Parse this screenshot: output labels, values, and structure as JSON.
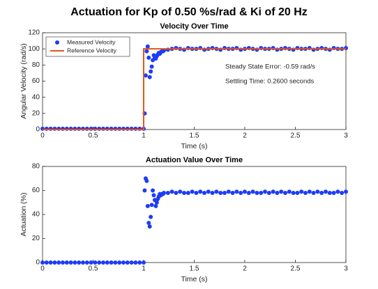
{
  "title": "Actuation for Kp of 0.50 %s/rad & Ki of 20 Hz",
  "chart_data": [
    {
      "type": "scatter",
      "title": "Velocity Over Time",
      "x_label": "Time (s)",
      "y_label": "Angular Velocity (rad/s)",
      "xlim": [
        0,
        3
      ],
      "xticks": [
        0,
        0.5,
        1,
        1.5,
        2,
        2.5,
        3
      ],
      "ylim": [
        0,
        120
      ],
      "yticks": [
        0,
        20,
        40,
        60,
        80,
        100,
        120
      ],
      "legend": "upper left",
      "annotations": [
        "Steady State Error: -0.59 rad/s",
        "Settling Time: 0.2600 seconds"
      ],
      "series": [
        {
          "name": "Measured Velocity",
          "mode": "markers",
          "color": "#1d3cf5",
          "x": [
            0,
            0.04,
            0.08,
            0.12,
            0.16,
            0.2,
            0.24,
            0.28,
            0.32,
            0.36,
            0.4,
            0.44,
            0.48,
            0.52,
            0.56,
            0.6,
            0.64,
            0.68,
            0.72,
            0.76,
            0.8,
            0.84,
            0.88,
            0.92,
            0.96,
            1,
            1.01,
            1.02,
            1.03,
            1.04,
            1.05,
            1.06,
            1.07,
            1.08,
            1.09,
            1.1,
            1.11,
            1.12,
            1.13,
            1.14,
            1.15,
            1.16,
            1.17,
            1.18,
            1.19,
            1.2,
            1.24,
            1.28,
            1.32,
            1.36,
            1.4,
            1.44,
            1.48,
            1.52,
            1.56,
            1.6,
            1.64,
            1.68,
            1.72,
            1.76,
            1.8,
            1.84,
            1.88,
            1.92,
            1.96,
            2,
            2.04,
            2.08,
            2.12,
            2.16,
            2.2,
            2.24,
            2.28,
            2.32,
            2.36,
            2.4,
            2.44,
            2.48,
            2.52,
            2.56,
            2.6,
            2.64,
            2.68,
            2.72,
            2.76,
            2.8,
            2.84,
            2.88,
            2.92,
            2.96,
            3
          ],
          "values": [
            1,
            1,
            1,
            1,
            1,
            1,
            1,
            1,
            1,
            1,
            1,
            1,
            1,
            1,
            1,
            1,
            1,
            1,
            1,
            1,
            1,
            1,
            1,
            1,
            1,
            1,
            20,
            67,
            97,
            103,
            89,
            65,
            72,
            78,
            86,
            92,
            90,
            88,
            91,
            93,
            95,
            94,
            96,
            97,
            97,
            98,
            99,
            100,
            101,
            100,
            99,
            101,
            100,
            100,
            101,
            99,
            100,
            101,
            100,
            99,
            101,
            100,
            100,
            101,
            99,
            100,
            101,
            100,
            99,
            101,
            100,
            100,
            101,
            99,
            100,
            101,
            100,
            99,
            101,
            100,
            100,
            101,
            99,
            100,
            101,
            100,
            99,
            101,
            100,
            100,
            101
          ]
        },
        {
          "name": "Reference Velocity",
          "mode": "line",
          "color": "#e8541c",
          "x": [
            0,
            1,
            1,
            3
          ],
          "values": [
            0,
            0,
            100,
            100
          ]
        }
      ]
    },
    {
      "type": "scatter",
      "title": "Actuation Value Over Time",
      "x_label": "Time (s)",
      "y_label": "Actuation (%)",
      "xlim": [
        0,
        3
      ],
      "xticks": [
        0,
        0.5,
        1,
        1.5,
        2,
        2.5,
        3
      ],
      "ylim": [
        0,
        80
      ],
      "yticks": [
        0,
        20,
        40,
        60,
        80
      ],
      "series": [
        {
          "mode": "markers",
          "color": "#1d3cf5",
          "x": [
            0,
            0.04,
            0.08,
            0.12,
            0.16,
            0.2,
            0.24,
            0.28,
            0.32,
            0.36,
            0.4,
            0.44,
            0.48,
            0.52,
            0.56,
            0.6,
            0.64,
            0.68,
            0.72,
            0.76,
            0.8,
            0.84,
            0.88,
            0.92,
            0.96,
            1,
            1.01,
            1.02,
            1.03,
            1.04,
            1.05,
            1.06,
            1.07,
            1.08,
            1.09,
            1.1,
            1.11,
            1.12,
            1.13,
            1.14,
            1.15,
            1.16,
            1.17,
            1.18,
            1.19,
            1.2,
            1.24,
            1.28,
            1.32,
            1.36,
            1.4,
            1.44,
            1.48,
            1.52,
            1.56,
            1.6,
            1.64,
            1.68,
            1.72,
            1.76,
            1.8,
            1.84,
            1.88,
            1.92,
            1.96,
            2,
            2.04,
            2.08,
            2.12,
            2.16,
            2.2,
            2.24,
            2.28,
            2.32,
            2.36,
            2.4,
            2.44,
            2.48,
            2.52,
            2.56,
            2.6,
            2.64,
            2.68,
            2.72,
            2.76,
            2.8,
            2.84,
            2.88,
            2.92,
            2.96,
            3
          ],
          "values": [
            0,
            0,
            0,
            0,
            0,
            0,
            0,
            0,
            0,
            0,
            0,
            0,
            0,
            0,
            0,
            0,
            0,
            0,
            0,
            0,
            0,
            0,
            0,
            0,
            0,
            0,
            60,
            70,
            68,
            47,
            33,
            30,
            38,
            48,
            60,
            56,
            52,
            47,
            50,
            53,
            55,
            57,
            56,
            57,
            57,
            58,
            58,
            59,
            58,
            59,
            58,
            58,
            59,
            58,
            59,
            58,
            59,
            58,
            59,
            58,
            58,
            59,
            58,
            59,
            58,
            59,
            58,
            59,
            58,
            58,
            59,
            58,
            59,
            58,
            59,
            58,
            59,
            58,
            58,
            59,
            58,
            59,
            58,
            59,
            58,
            59,
            58,
            58,
            59,
            58,
            59
          ]
        }
      ]
    }
  ]
}
